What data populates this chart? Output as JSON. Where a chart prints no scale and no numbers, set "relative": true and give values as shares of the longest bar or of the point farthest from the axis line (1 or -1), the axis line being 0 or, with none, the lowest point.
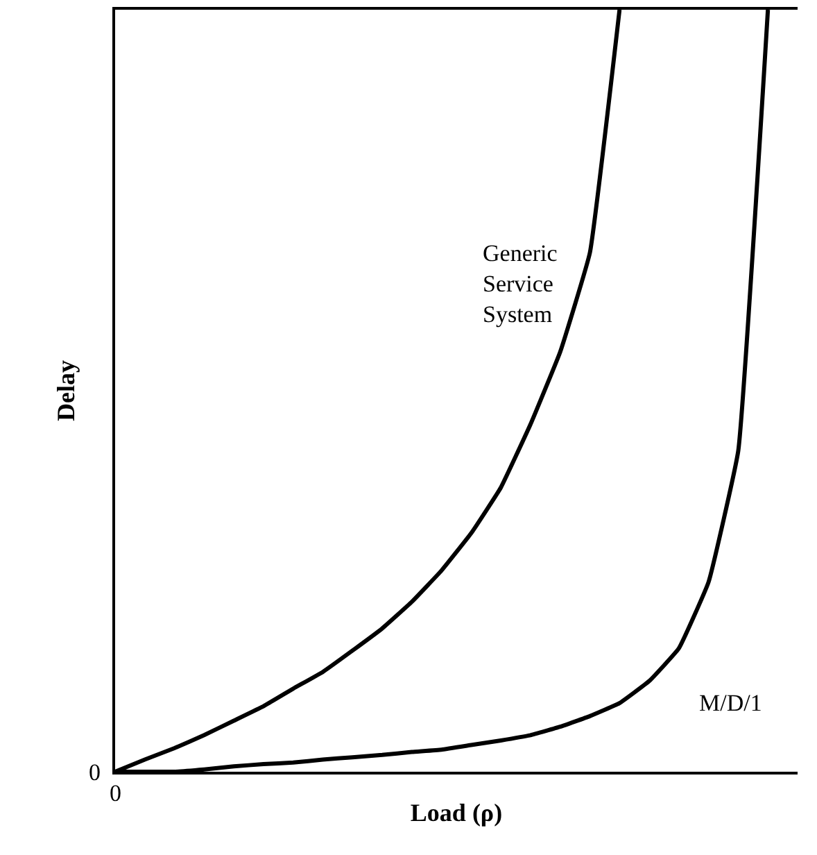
{
  "chart_data": {
    "type": "line",
    "relative": true,
    "xlabel": "Load (ρ)",
    "ylabel": "Delay",
    "categories": [
      null,
      null,
      null,
      null,
      null,
      null,
      null,
      null,
      null,
      null,
      null,
      null,
      null,
      null,
      null,
      null,
      null,
      null,
      null,
      null,
      null,
      null,
      null,
      null
    ],
    "series": [
      {
        "name": "Generic Service System",
        "color": "#000000",
        "values": [
          0,
          0.016,
          0.031,
          0.048,
          0.067,
          0.086,
          0.109,
          0.131,
          0.159,
          0.188,
          0.223,
          0.264,
          0.313,
          0.373,
          0.456,
          0.551,
          0.681,
          1.0,
          null,
          null,
          null,
          null,
          null,
          null
        ]
      },
      {
        "name": "M/D/1",
        "color": "#000000",
        "values": [
          0,
          0,
          0,
          0.003,
          0.007,
          0.01,
          0.012,
          0.016,
          0.019,
          0.022,
          0.026,
          0.029,
          0.035,
          0.041,
          0.048,
          0.059,
          0.073,
          0.09,
          0.119,
          0.162,
          0.249,
          0.421,
          1.0,
          null
        ]
      }
    ],
    "annotations": [
      "0",
      "0"
    ],
    "marker": "none",
    "line_style": "solid",
    "legend": false
  }
}
